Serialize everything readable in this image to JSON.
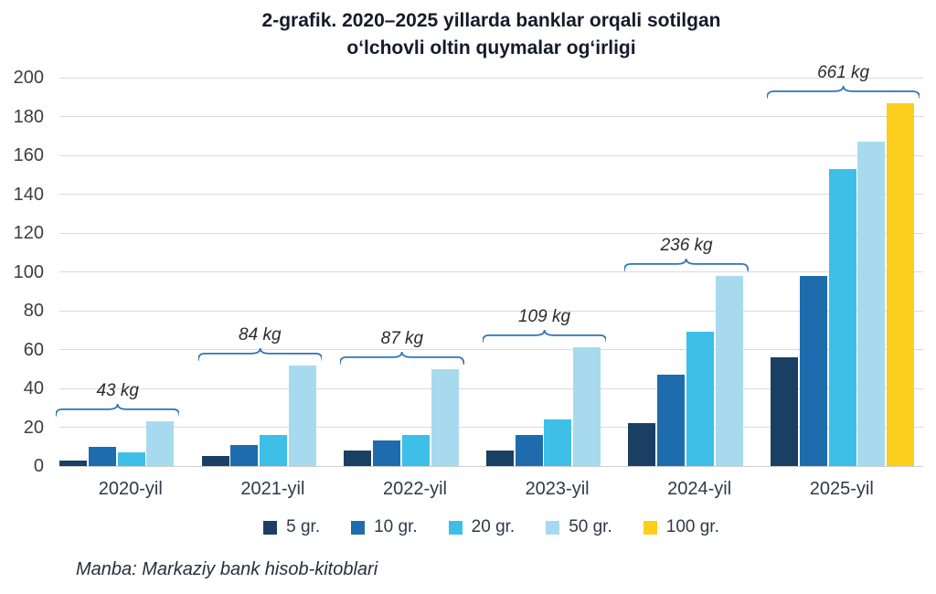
{
  "title": {
    "line1": "2-grafik. 2020–2025 yillarda banklar orqali sotilgan",
    "line2": "oʻlchovli oltin quymalar ogʻirligi"
  },
  "source": "Manba: Markaziy bank hisob-kitoblari",
  "colors": {
    "brace": "#2E74B5",
    "gridline": "#dadada",
    "title_text": "#141b2a"
  },
  "chart_data": {
    "type": "bar",
    "title": "2-grafik. 2020–2025 yillarda banklar orqali sotilgan oʻlchovli oltin quymalar ogʻirligi",
    "categories": [
      "2020-yil",
      "2021-yil",
      "2022-yil",
      "2023-yil",
      "2024-yil",
      "2025-yil"
    ],
    "series": [
      {
        "name": "5 gr.",
        "color": "#1A3F63",
        "values": [
          3,
          5,
          8,
          8,
          22,
          56
        ]
      },
      {
        "name": "10 gr.",
        "color": "#1E6CAE",
        "values": [
          10,
          11,
          13,
          16,
          47,
          98
        ]
      },
      {
        "name": "20 gr.",
        "color": "#3DBFE8",
        "values": [
          7,
          16,
          16,
          24,
          69,
          153
        ]
      },
      {
        "name": "50 gr.",
        "color": "#A8DAEF",
        "values": [
          23,
          52,
          50,
          61,
          98,
          167
        ]
      },
      {
        "name": "100 gr.",
        "color": "#FCCE1D",
        "values": [
          0,
          0,
          0,
          0,
          0,
          187
        ]
      }
    ],
    "group_annotations": [
      "43 kg",
      "84 kg",
      "87 kg",
      "109 kg",
      "236 kg",
      "661 kg"
    ],
    "ylabel": "",
    "xlabel": "",
    "ylim": [
      0,
      200
    ],
    "ytick_step": 20,
    "grid": true,
    "legend_position": "bottom"
  }
}
